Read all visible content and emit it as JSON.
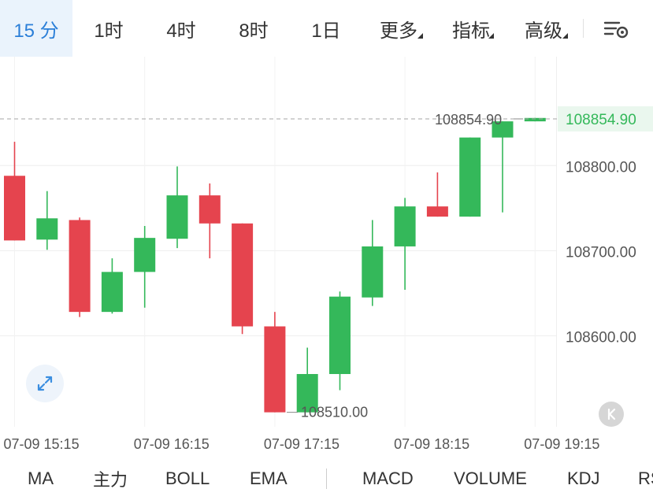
{
  "timeframe_tabs": [
    {
      "label": "15 分",
      "active": true
    },
    {
      "label": "1时",
      "active": false
    },
    {
      "label": "4时",
      "active": false
    },
    {
      "label": "8时",
      "active": false
    },
    {
      "label": "1日",
      "active": false
    },
    {
      "label": "更多",
      "active": false,
      "dropdown": true
    },
    {
      "label": "指标",
      "active": false,
      "dropdown": true
    },
    {
      "label": "高级",
      "active": false,
      "dropdown": true
    }
  ],
  "settings_icon": "chart-settings-icon",
  "expand_icon": "expand-arrows-icon",
  "collapse_icon": "collapse-k-icon",
  "indicator_tabs": [
    "MA",
    "主力",
    "BOLL",
    "EMA",
    "MACD",
    "VOLUME",
    "KDJ",
    "RSI"
  ],
  "colors": {
    "up": "#34b85a",
    "down": "#e5444e",
    "active_tab": "#2b7fd8",
    "price_tag_bg": "#eaf7ee"
  },
  "chart_data": {
    "type": "candlestick",
    "y_ticks": [
      "108800.00",
      "108700.00",
      "108600.00"
    ],
    "x_ticks": [
      "07-09 15:15",
      "07-09 16:15",
      "07-09 17:15",
      "07-09 18:15",
      "07-09 19:15"
    ],
    "y_range": [
      108493,
      108928
    ],
    "current_price": "108854.90",
    "high_marker": "108854.90",
    "low_marker": "108510.00",
    "candles": [
      {
        "open": 108788,
        "close": 108712,
        "high": 108828,
        "low": 108712
      },
      {
        "open": 108713,
        "close": 108738,
        "high": 108770,
        "low": 108701
      },
      {
        "open": 108736,
        "close": 108628,
        "high": 108739,
        "low": 108622
      },
      {
        "open": 108628,
        "close": 108675,
        "high": 108691,
        "low": 108626
      },
      {
        "open": 108675,
        "close": 108715,
        "high": 108729,
        "low": 108633
      },
      {
        "open": 108714,
        "close": 108765,
        "high": 108799,
        "low": 108703
      },
      {
        "open": 108765,
        "close": 108732,
        "high": 108779,
        "low": 108691
      },
      {
        "open": 108732,
        "close": 108611,
        "high": 108732,
        "low": 108602
      },
      {
        "open": 108611,
        "close": 108510,
        "high": 108628,
        "low": 108510
      },
      {
        "open": 108510,
        "close": 108555,
        "high": 108586,
        "low": 108510
      },
      {
        "open": 108555,
        "close": 108646,
        "high": 108652,
        "low": 108536
      },
      {
        "open": 108645,
        "close": 108705,
        "high": 108736,
        "low": 108635
      },
      {
        "open": 108705,
        "close": 108752,
        "high": 108762,
        "low": 108654
      },
      {
        "open": 108752,
        "close": 108740,
        "high": 108792,
        "low": 108740
      },
      {
        "open": 108740,
        "close": 108833,
        "high": 108833,
        "low": 108740
      },
      {
        "open": 108833,
        "close": 108852,
        "high": 108852,
        "low": 108745
      },
      {
        "open": 108852,
        "close": 108856,
        "high": 108856,
        "low": 108852
      }
    ]
  }
}
